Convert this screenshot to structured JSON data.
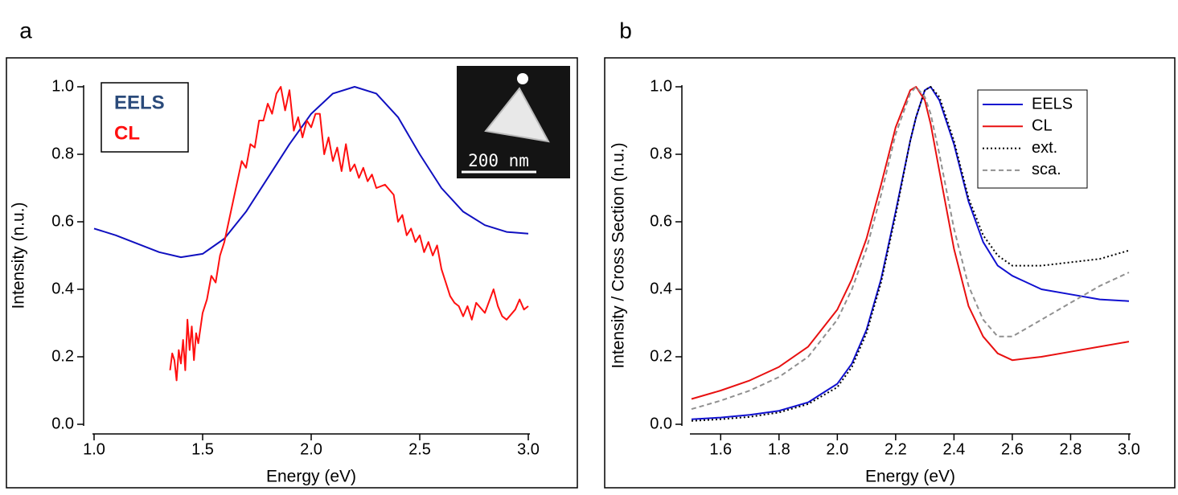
{
  "chart_data": [
    {
      "type": "line",
      "panel_label": "a",
      "xlabel": "Energy (eV)",
      "ylabel": "Intensity (n.u.)",
      "xlim": [
        1.0,
        3.0
      ],
      "ylim": [
        0,
        1.0
      ],
      "xticks": [
        {
          "value": 1.0,
          "label": "1.0"
        },
        1.5,
        {
          "value": 2.0,
          "label": "2.0"
        },
        2.5,
        {
          "value": 3.0,
          "label": "3.0"
        }
      ],
      "yticks": [
        {
          "value": 0,
          "label": "0.0"
        },
        0.2,
        0.4,
        0.6,
        0.8,
        {
          "value": 1.0,
          "label": "1.0"
        }
      ],
      "legend": "upper left",
      "scale_bar": "200 nm",
      "series": [
        {
          "name": "EELS",
          "color": "#1010c0",
          "label_color": "#2a4a7a",
          "dash": "solid",
          "x": [
            1.0,
            1.1,
            1.2,
            1.3,
            1.4,
            1.5,
            1.6,
            1.7,
            1.8,
            1.9,
            2.0,
            2.1,
            2.2,
            2.3,
            2.4,
            2.5,
            2.6,
            2.7,
            2.8,
            2.9,
            3.0
          ],
          "values": [
            0.58,
            0.56,
            0.535,
            0.51,
            0.495,
            0.505,
            0.55,
            0.63,
            0.73,
            0.83,
            0.92,
            0.98,
            1.0,
            0.98,
            0.91,
            0.8,
            0.7,
            0.63,
            0.59,
            0.57,
            0.565
          ]
        },
        {
          "name": "CL",
          "color": "#ff1010",
          "label_color": "#ff1010",
          "dash": "solid",
          "x": [
            1.35,
            1.36,
            1.37,
            1.38,
            1.39,
            1.4,
            1.41,
            1.42,
            1.43,
            1.44,
            1.45,
            1.46,
            1.47,
            1.48,
            1.5,
            1.52,
            1.54,
            1.56,
            1.58,
            1.6,
            1.62,
            1.64,
            1.66,
            1.68,
            1.7,
            1.72,
            1.74,
            1.76,
            1.78,
            1.8,
            1.82,
            1.84,
            1.86,
            1.88,
            1.9,
            1.92,
            1.94,
            1.96,
            1.98,
            2.0,
            2.02,
            2.04,
            2.06,
            2.08,
            2.1,
            2.12,
            2.14,
            2.16,
            2.18,
            2.2,
            2.22,
            2.24,
            2.26,
            2.28,
            2.3,
            2.34,
            2.38,
            2.4,
            2.42,
            2.44,
            2.46,
            2.48,
            2.5,
            2.52,
            2.54,
            2.56,
            2.58,
            2.6,
            2.62,
            2.64,
            2.66,
            2.68,
            2.7,
            2.72,
            2.74,
            2.76,
            2.8,
            2.84,
            2.86,
            2.88,
            2.9,
            2.94,
            2.96,
            2.98,
            3.0
          ],
          "values": [
            0.16,
            0.21,
            0.19,
            0.13,
            0.22,
            0.18,
            0.25,
            0.16,
            0.31,
            0.22,
            0.29,
            0.19,
            0.27,
            0.24,
            0.33,
            0.37,
            0.44,
            0.42,
            0.5,
            0.54,
            0.6,
            0.66,
            0.72,
            0.78,
            0.76,
            0.83,
            0.82,
            0.9,
            0.9,
            0.95,
            0.92,
            0.98,
            1.0,
            0.93,
            0.99,
            0.87,
            0.91,
            0.85,
            0.9,
            0.88,
            0.92,
            0.92,
            0.8,
            0.85,
            0.78,
            0.82,
            0.75,
            0.83,
            0.75,
            0.77,
            0.73,
            0.76,
            0.72,
            0.74,
            0.7,
            0.71,
            0.68,
            0.6,
            0.62,
            0.56,
            0.58,
            0.54,
            0.56,
            0.51,
            0.54,
            0.5,
            0.53,
            0.46,
            0.42,
            0.38,
            0.36,
            0.35,
            0.32,
            0.35,
            0.31,
            0.36,
            0.33,
            0.4,
            0.35,
            0.32,
            0.31,
            0.34,
            0.37,
            0.34,
            0.35
          ]
        }
      ]
    },
    {
      "type": "line",
      "panel_label": "b",
      "xlabel": "Energy (eV)",
      "ylabel": "Intensity / Cross Section (n.u.)",
      "xlim": [
        1.5,
        3.0
      ],
      "ylim": [
        0,
        1.0
      ],
      "xticks": [
        1.6,
        1.8,
        {
          "value": 2.0,
          "label": "2.0"
        },
        2.2,
        2.4,
        2.6,
        2.8,
        {
          "value": 3.0,
          "label": "3.0"
        }
      ],
      "yticks": [
        {
          "value": 0,
          "label": "0.0"
        },
        0.2,
        0.4,
        0.6,
        0.8,
        {
          "value": 1.0,
          "label": "1.0"
        }
      ],
      "legend": "upper right",
      "x": [
        1.5,
        1.6,
        1.7,
        1.8,
        1.9,
        2.0,
        2.05,
        2.1,
        2.15,
        2.2,
        2.25,
        2.27,
        2.3,
        2.32,
        2.35,
        2.4,
        2.45,
        2.5,
        2.55,
        2.6,
        2.7,
        2.8,
        2.9,
        3.0
      ],
      "series": [
        {
          "name": "EELS",
          "color": "#1010d0",
          "dash": "solid",
          "values": [
            0.015,
            0.02,
            0.028,
            0.04,
            0.065,
            0.12,
            0.18,
            0.28,
            0.43,
            0.63,
            0.84,
            0.91,
            0.99,
            1.0,
            0.96,
            0.83,
            0.66,
            0.54,
            0.47,
            0.44,
            0.4,
            0.385,
            0.37,
            0.365
          ]
        },
        {
          "name": "CL",
          "color": "#e81010",
          "dash": "solid",
          "values": [
            0.075,
            0.1,
            0.13,
            0.17,
            0.23,
            0.34,
            0.43,
            0.55,
            0.71,
            0.88,
            0.99,
            1.0,
            0.96,
            0.89,
            0.75,
            0.52,
            0.35,
            0.26,
            0.21,
            0.19,
            0.2,
            0.215,
            0.23,
            0.245
          ]
        },
        {
          "name": "ext.",
          "color": "#000000",
          "dash": "dotted",
          "values": [
            0.01,
            0.015,
            0.022,
            0.035,
            0.06,
            0.11,
            0.17,
            0.27,
            0.42,
            0.62,
            0.84,
            0.91,
            0.99,
            1.0,
            0.97,
            0.84,
            0.67,
            0.56,
            0.5,
            0.47,
            0.47,
            0.48,
            0.49,
            0.515
          ]
        },
        {
          "name": "sca.",
          "color": "#909090",
          "dash": "dashed",
          "values": [
            0.045,
            0.07,
            0.1,
            0.14,
            0.2,
            0.31,
            0.4,
            0.52,
            0.68,
            0.86,
            0.98,
            1.0,
            0.97,
            0.92,
            0.8,
            0.58,
            0.41,
            0.31,
            0.26,
            0.26,
            0.31,
            0.36,
            0.41,
            0.45
          ]
        }
      ]
    }
  ]
}
